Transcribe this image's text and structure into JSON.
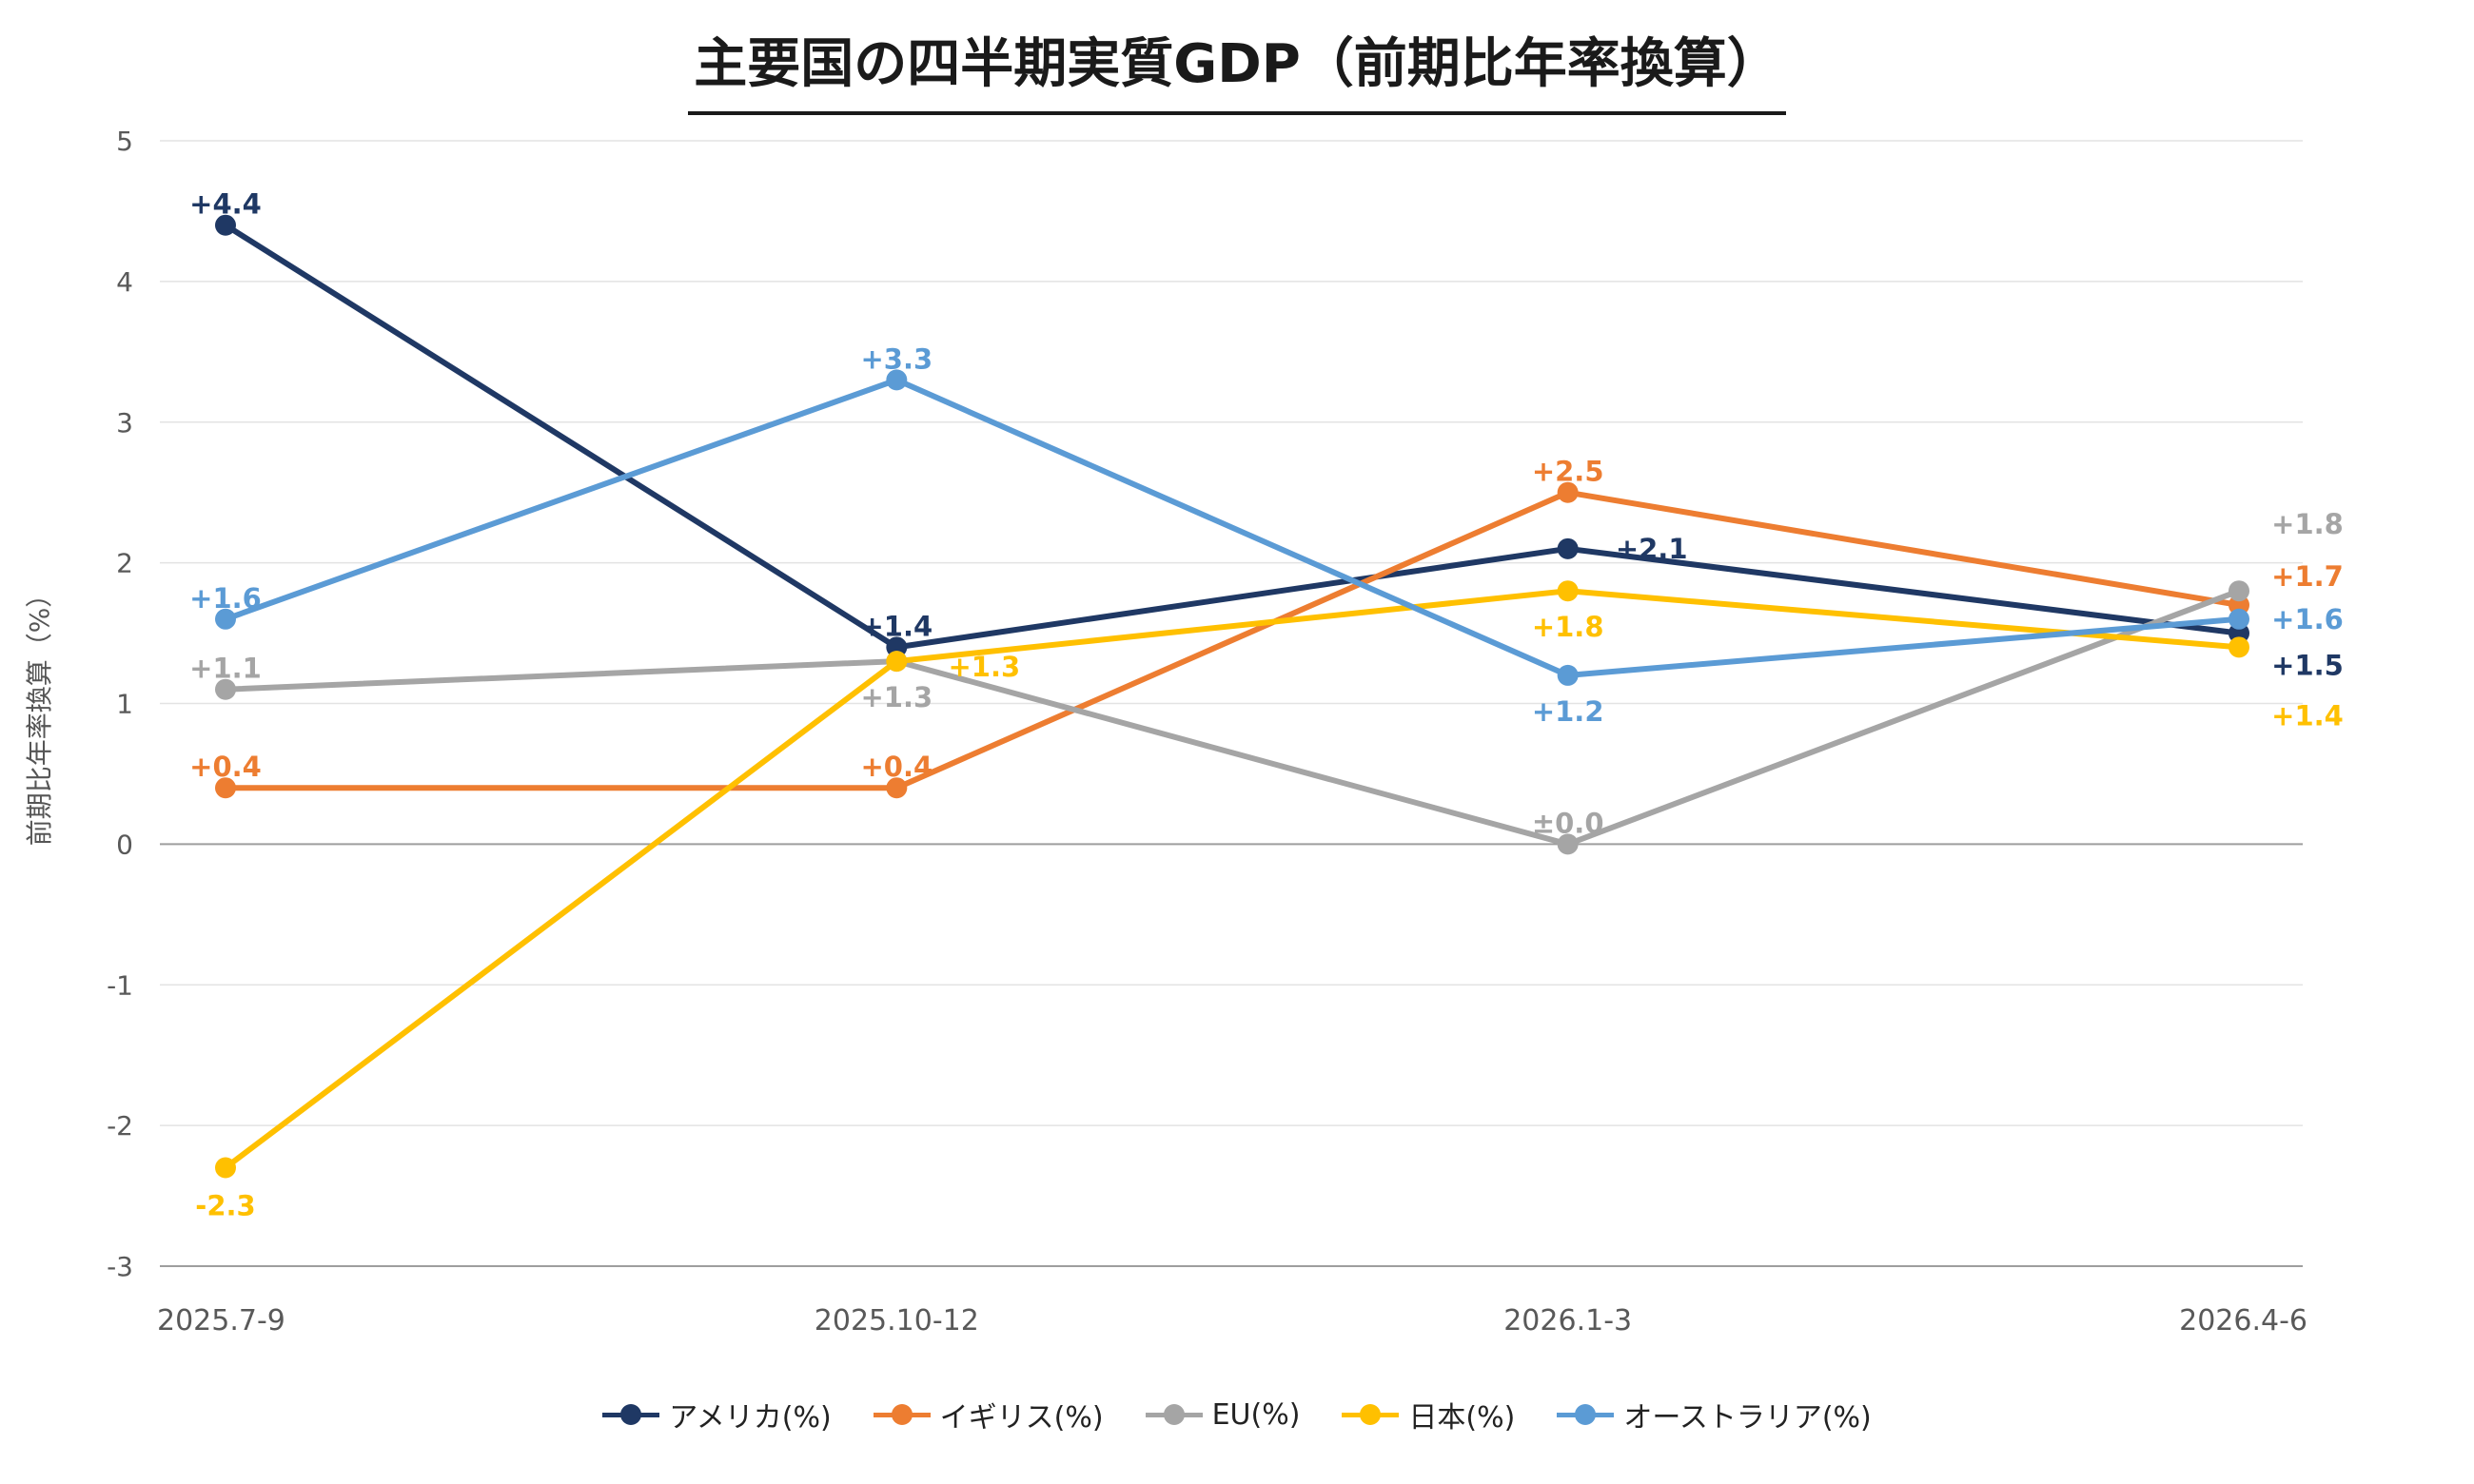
{
  "chart_data": {
    "type": "line",
    "title": "主要国の四半期実質GDP（前期比年率換算）",
    "ylabel": "前期比年率換算（%）",
    "xlabel": "",
    "categories": [
      "2025.7-9",
      "2025.10-12",
      "2026.1-3",
      "2026.4-6"
    ],
    "ylim": [
      -3,
      5
    ],
    "yticks": [
      "5",
      "4",
      "3",
      "2",
      "1",
      "0",
      "-1",
      "-2",
      "-3"
    ],
    "grid": true,
    "legend_position": "bottom",
    "series": [
      {
        "name": "アメリカ(%)",
        "color": "#1f3864",
        "values": [
          4.4,
          1.4,
          2.1,
          1.5
        ],
        "labels": [
          "+4.4",
          "+1.4",
          "+2.1",
          "+1.5"
        ]
      },
      {
        "name": "イギリス(%)",
        "color": "#ed7d31",
        "values": [
          0.4,
          0.4,
          2.5,
          1.7
        ],
        "labels": [
          "+0.4",
          "+0.4",
          "+2.5",
          "+1.7"
        ]
      },
      {
        "name": "EU(%)",
        "color": "#a5a5a5",
        "values": [
          1.1,
          1.3,
          0.0,
          1.8
        ],
        "labels": [
          "+1.1",
          "+1.3",
          "±0.0",
          "+1.8"
        ]
      },
      {
        "name": "日本(%)",
        "color": "#ffc000",
        "values": [
          -2.3,
          1.3,
          1.8,
          1.4
        ],
        "labels": [
          "-2.3",
          "+1.3",
          "+1.8",
          "+1.4"
        ]
      },
      {
        "name": "オーストラリア(%)",
        "color": "#5b9bd5",
        "values": [
          1.6,
          3.3,
          1.2,
          1.6
        ],
        "labels": [
          "+1.6",
          "+3.3",
          "+1.2",
          "+1.6"
        ]
      }
    ]
  }
}
